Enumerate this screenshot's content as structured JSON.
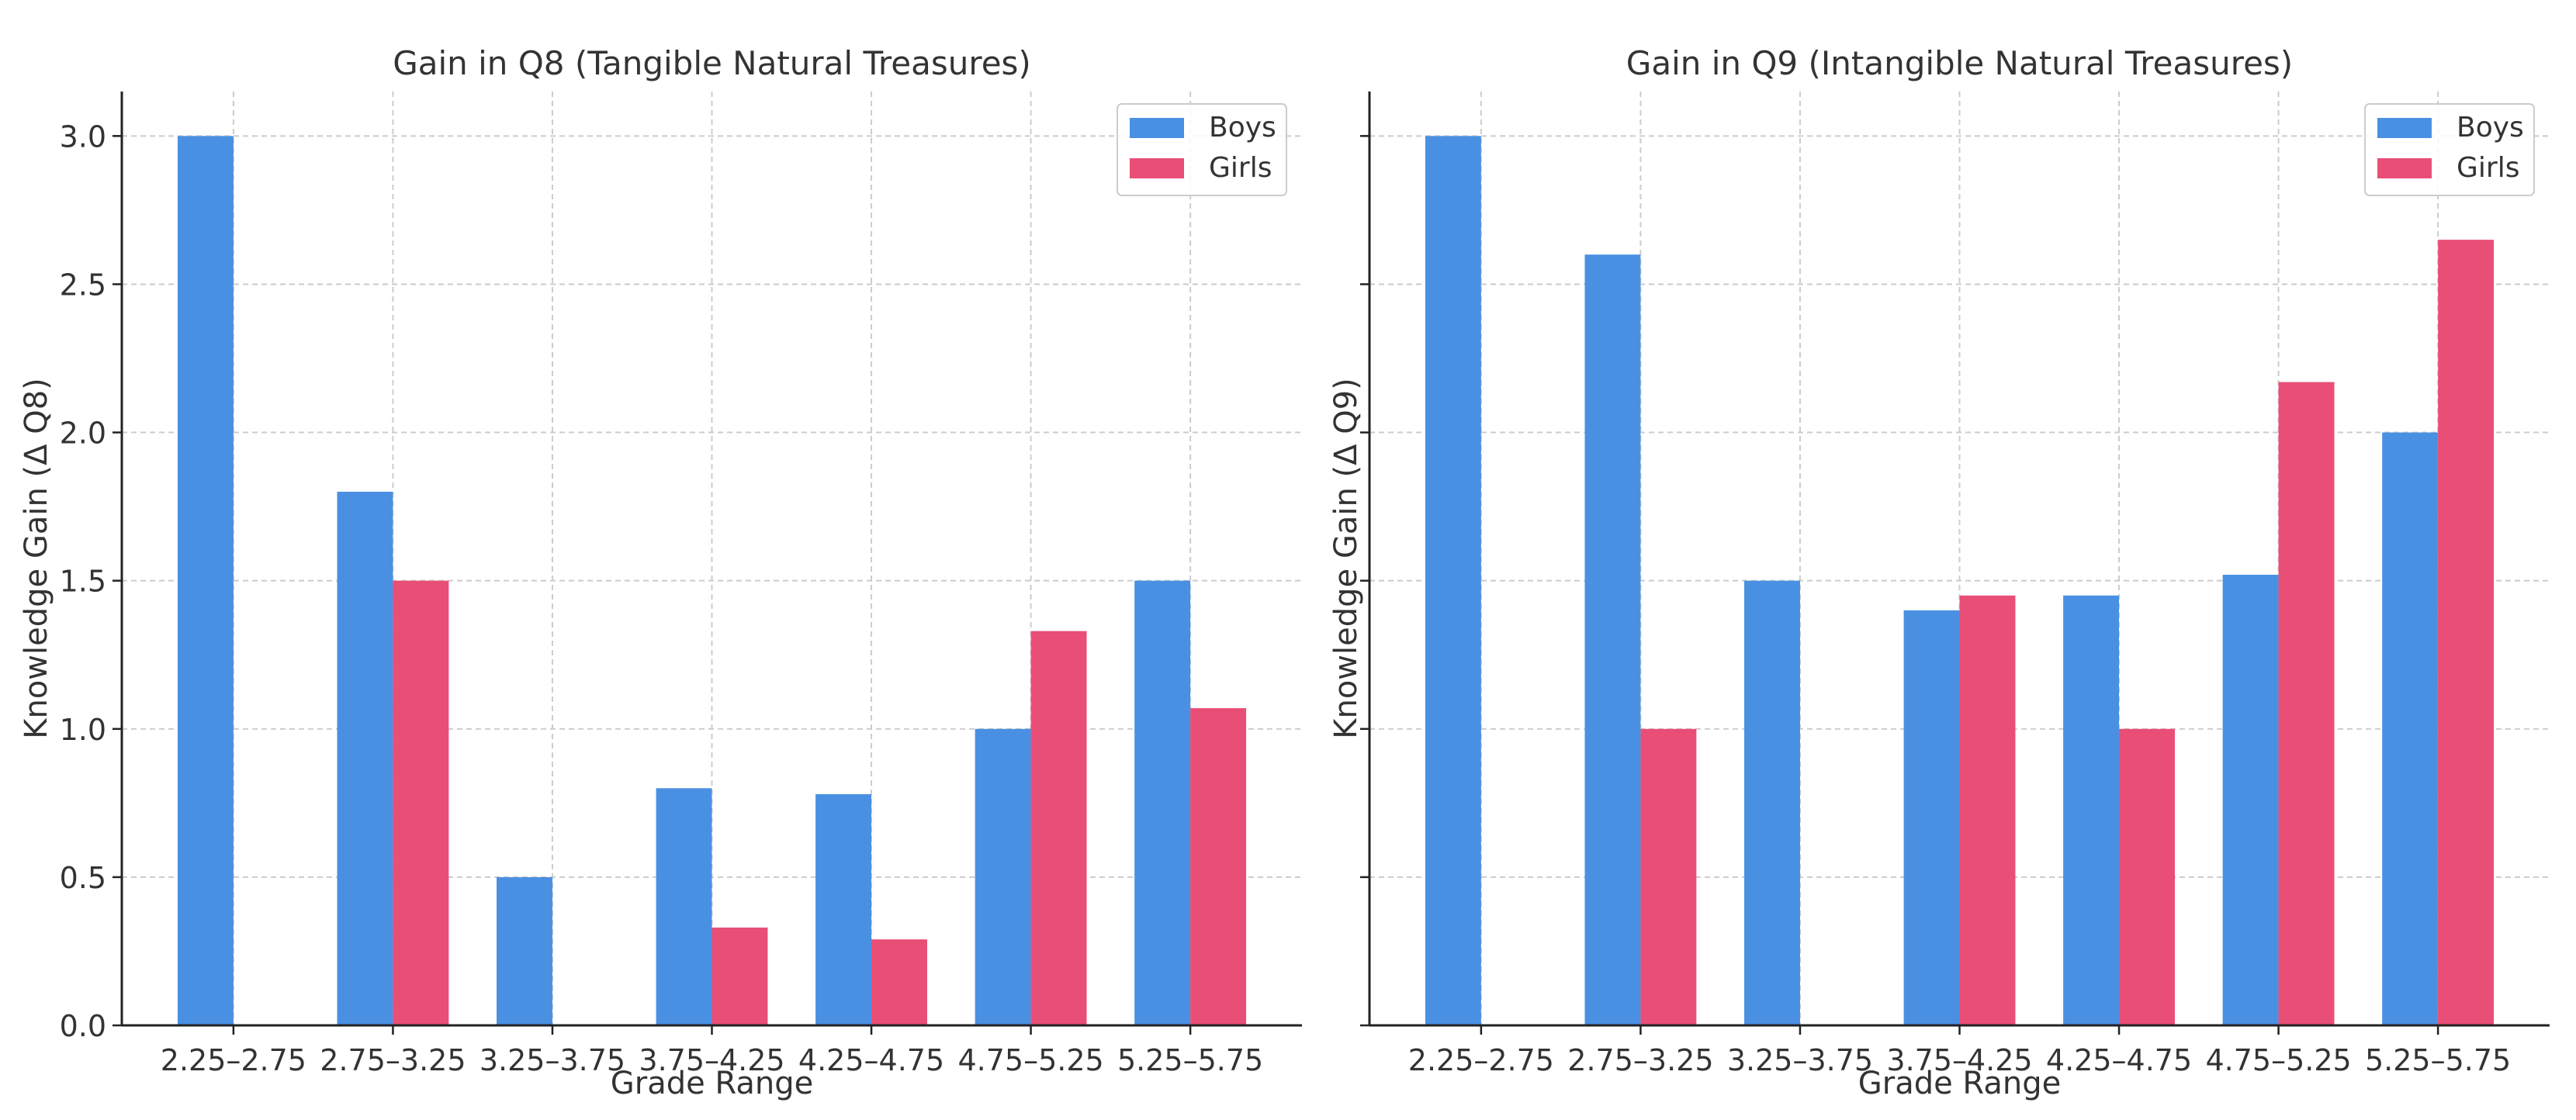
{
  "chart_data": [
    {
      "type": "bar",
      "title": "Gain in Q8 (Tangible Natural Treasures)",
      "xlabel": "Grade Range",
      "ylabel": "Knowledge Gain (Δ Q8)",
      "categories": [
        "2.25–2.75",
        "2.75–3.25",
        "3.25–3.75",
        "3.75–4.25",
        "4.25–4.75",
        "4.75–5.25",
        "5.25–5.75"
      ],
      "series": [
        {
          "name": "Boys",
          "color": "#4a90e2",
          "values": [
            3.0,
            1.8,
            0.5,
            0.8,
            0.78,
            1.0,
            1.5
          ]
        },
        {
          "name": "Girls",
          "color": "#e94e77",
          "values": [
            null,
            1.5,
            null,
            0.33,
            0.29,
            1.33,
            1.07
          ]
        }
      ],
      "ylim": [
        0,
        3.15
      ],
      "yticks": [
        "0.0",
        "0.5",
        "1.0",
        "1.5",
        "2.0",
        "2.5",
        "3.0"
      ],
      "show_ytick_labels": true,
      "grid": true,
      "legend": "top-right"
    },
    {
      "type": "bar",
      "title": "Gain in Q9 (Intangible Natural Treasures)",
      "xlabel": "Grade Range",
      "ylabel": "Knowledge Gain (Δ Q9)",
      "categories": [
        "2.25–2.75",
        "2.75–3.25",
        "3.25–3.75",
        "3.75–4.25",
        "4.25–4.75",
        "4.75–5.25",
        "5.25–5.75"
      ],
      "series": [
        {
          "name": "Boys",
          "color": "#4a90e2",
          "values": [
            3.0,
            2.6,
            1.5,
            1.4,
            1.45,
            1.52,
            2.0
          ]
        },
        {
          "name": "Girls",
          "color": "#e94e77",
          "values": [
            null,
            1.0,
            null,
            1.45,
            1.0,
            2.17,
            2.65
          ]
        }
      ],
      "ylim": [
        0,
        3.15
      ],
      "yticks": [
        "0.0",
        "0.5",
        "1.0",
        "1.5",
        "2.0",
        "2.5",
        "3.0"
      ],
      "show_ytick_labels": false,
      "grid": true,
      "legend": "top-right"
    }
  ]
}
